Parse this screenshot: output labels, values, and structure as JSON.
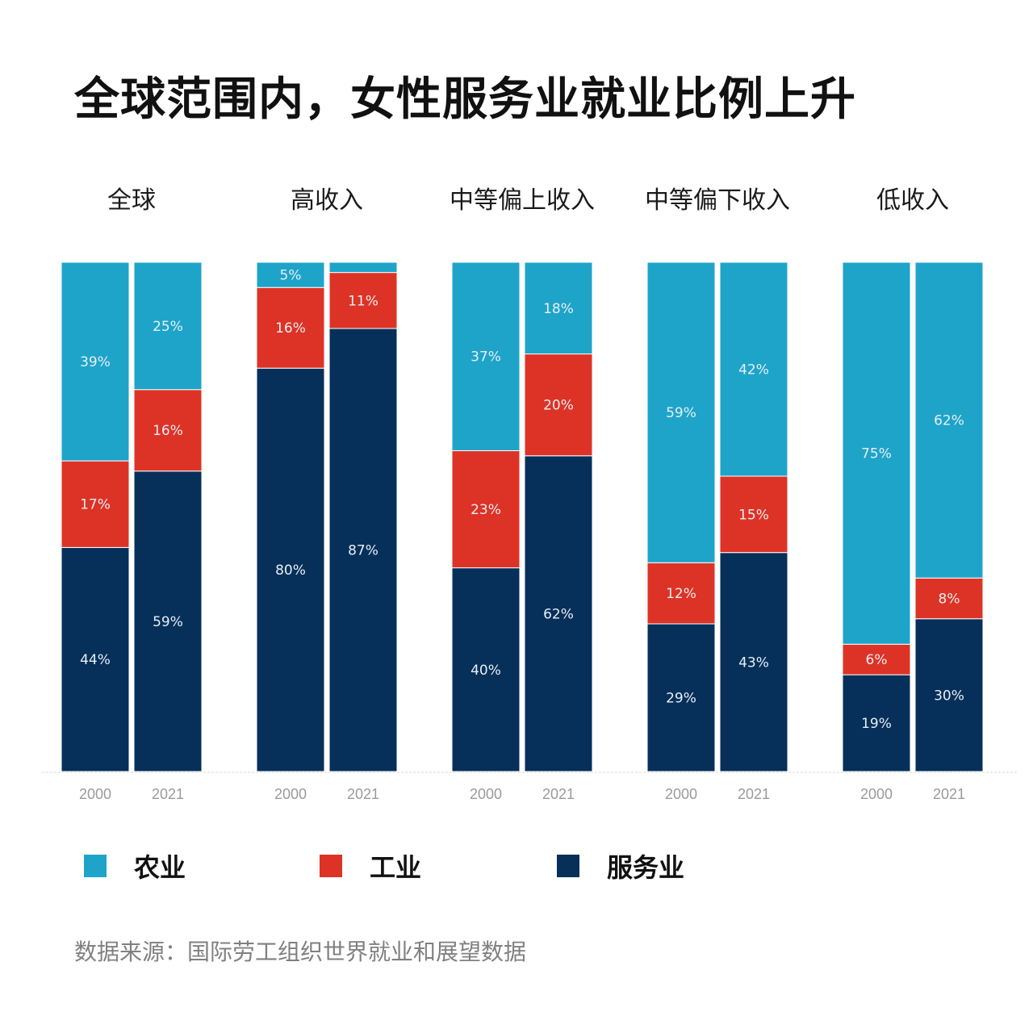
{
  "title": "全球范围内，女性服务业就业比例上升",
  "source": "数据来源：国际劳工组织世界就业和展望数据",
  "colors": {
    "agriculture": "#1ea4c9",
    "industry": "#dd3326",
    "services": "#06305a"
  },
  "legend": [
    {
      "key": "agriculture",
      "label": "农业"
    },
    {
      "key": "industry",
      "label": "工业"
    },
    {
      "key": "services",
      "label": "服务业"
    }
  ],
  "chart_data": {
    "type": "bar",
    "stacked": true,
    "ylim": [
      0,
      100
    ],
    "groups": [
      {
        "name": "全球",
        "bars": [
          {
            "year": "2000",
            "services": 44,
            "industry": 17,
            "agriculture": 39
          },
          {
            "year": "2021",
            "services": 59,
            "industry": 16,
            "agriculture": 25
          }
        ]
      },
      {
        "name": "高收入",
        "bars": [
          {
            "year": "2000",
            "services": 80,
            "industry": 16,
            "agriculture": 5
          },
          {
            "year": "2021",
            "services": 87,
            "industry": 11,
            "agriculture": 2
          }
        ]
      },
      {
        "name": "中等偏上收入",
        "bars": [
          {
            "year": "2000",
            "services": 40,
            "industry": 23,
            "agriculture": 37
          },
          {
            "year": "2021",
            "services": 62,
            "industry": 20,
            "agriculture": 18
          }
        ]
      },
      {
        "name": "中等偏下收入",
        "bars": [
          {
            "year": "2000",
            "services": 29,
            "industry": 12,
            "agriculture": 59
          },
          {
            "year": "2021",
            "services": 43,
            "industry": 15,
            "agriculture": 42
          }
        ]
      },
      {
        "name": "低收入",
        "bars": [
          {
            "year": "2000",
            "services": 19,
            "industry": 6,
            "agriculture": 75
          },
          {
            "year": "2021",
            "services": 30,
            "industry": 8,
            "agriculture": 62
          }
        ]
      }
    ],
    "labels_hidden": [
      {
        "group": 1,
        "bar": 1,
        "segment": "agriculture"
      }
    ]
  }
}
